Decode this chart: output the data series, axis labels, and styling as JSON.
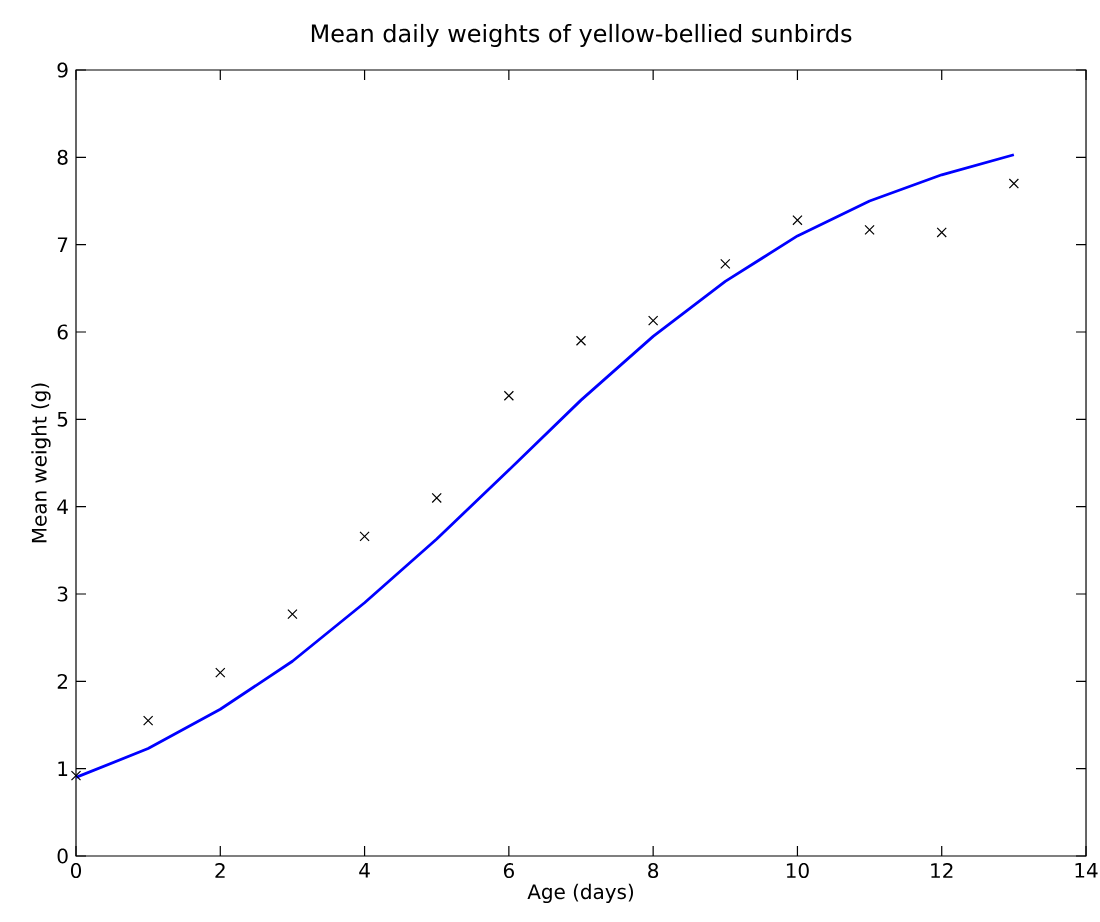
{
  "chart_data": {
    "type": "line",
    "title": "Mean daily weights of yellow-bellied sunbirds",
    "xlabel": "Age (days)",
    "ylabel": "Mean weight (g)",
    "x": [
      0,
      1,
      2,
      3,
      4,
      5,
      6,
      7,
      8,
      9,
      10,
      11,
      12,
      13
    ],
    "series": [
      {
        "type": "scatter",
        "marker": "cross",
        "color": "#000000",
        "values": [
          0.92,
          1.55,
          2.1,
          2.77,
          3.66,
          4.1,
          5.27,
          5.9,
          6.13,
          6.78,
          7.28,
          7.17,
          7.14,
          7.7
        ]
      },
      {
        "color": "#0000ff",
        "values": [
          0.9,
          1.23,
          1.68,
          2.23,
          2.9,
          3.63,
          4.42,
          5.22,
          5.95,
          6.58,
          7.1,
          7.5,
          7.8,
          8.03
        ]
      }
    ],
    "xlim": [
      0,
      14
    ],
    "xticks": [
      0,
      2,
      4,
      6,
      8,
      10,
      12,
      14
    ],
    "ylim": [
      0,
      9
    ],
    "yticks": [
      0,
      1,
      2,
      3,
      4,
      5,
      6,
      7,
      8,
      9
    ],
    "grid": false
  }
}
